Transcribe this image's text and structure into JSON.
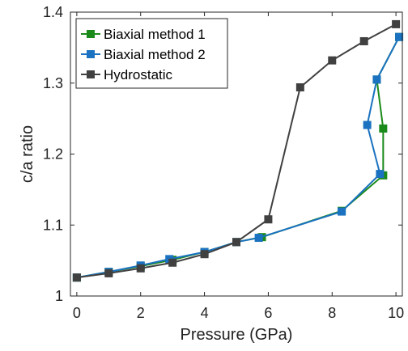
{
  "chart_data": {
    "type": "line",
    "title": "",
    "xlabel": "Pressure (GPa)",
    "ylabel": "c/a ratio",
    "xlim": [
      -0.2,
      10.2
    ],
    "ylim": [
      1.0,
      1.4
    ],
    "xticks": [
      0,
      2,
      4,
      6,
      8,
      10
    ],
    "yticks": [
      1,
      1.1,
      1.2,
      1.3,
      1.4
    ],
    "xtick_labels": [
      "0",
      "2",
      "4",
      "6",
      "8",
      "10"
    ],
    "ytick_labels": [
      "1",
      "1.1",
      "1.2",
      "1.3",
      "1.4"
    ],
    "grid": false,
    "legend_position": "top-left",
    "series": [
      {
        "name": "Biaxial method 1",
        "color": "#1a8a1a",
        "marker": "square",
        "x": [
          0,
          1,
          2,
          3,
          4,
          5,
          5.8,
          8.3,
          9.6,
          9.6,
          9.4,
          10.1
        ],
        "y": [
          1.026,
          1.034,
          1.042,
          1.051,
          1.062,
          1.076,
          1.083,
          1.12,
          1.17,
          1.236,
          1.305,
          1.365
        ]
      },
      {
        "name": "Biaxial method 2",
        "color": "#1a72c0",
        "marker": "square",
        "x": [
          0,
          1,
          2,
          2.9,
          4,
          5,
          5.7,
          8.3,
          9.5,
          9.1,
          9.4,
          10.1
        ],
        "y": [
          1.026,
          1.034,
          1.043,
          1.052,
          1.062,
          1.076,
          1.082,
          1.119,
          1.172,
          1.241,
          1.305,
          1.365
        ]
      },
      {
        "name": "Hydrostatic",
        "color": "#404040",
        "marker": "square",
        "x": [
          0,
          1,
          2,
          3,
          4,
          5,
          6,
          7,
          8,
          9,
          10
        ],
        "y": [
          1.026,
          1.032,
          1.039,
          1.047,
          1.059,
          1.076,
          1.108,
          1.294,
          1.332,
          1.359,
          1.383
        ]
      }
    ]
  }
}
